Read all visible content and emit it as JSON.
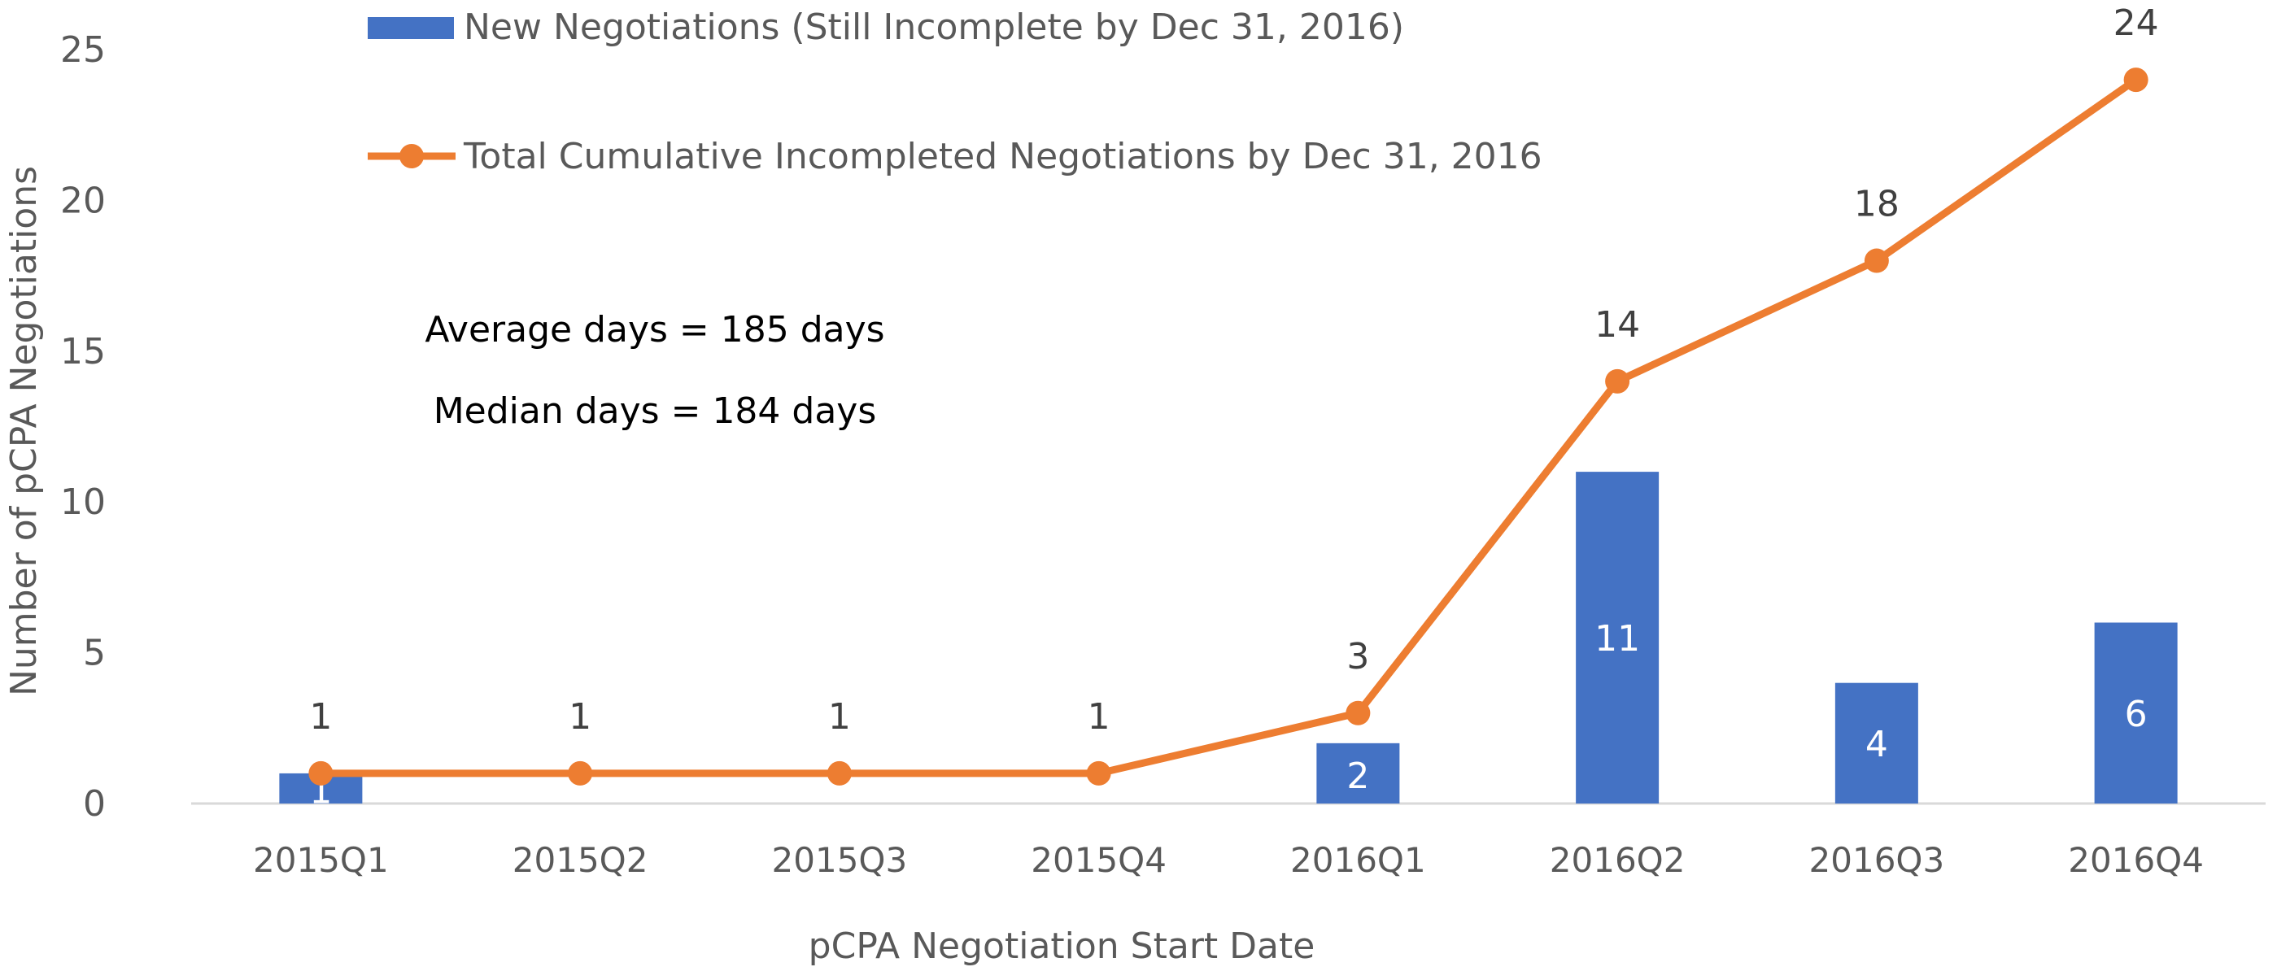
{
  "chart_data": {
    "type": "bar",
    "title": "",
    "xlabel": "pCPA Negotiation Start Date",
    "ylabel": "Number of pCPA Negotiations",
    "ylim": [
      0,
      25
    ],
    "yticks": [
      "0",
      "5",
      "10",
      "15",
      "20",
      "25"
    ],
    "grid": false,
    "legend_position": "top-left",
    "categories": [
      "2015Q1",
      "2015Q2",
      "2015Q3",
      "2015Q4",
      "2016Q1",
      "2016Q2",
      "2016Q3",
      "2016Q4"
    ],
    "series": [
      {
        "name": "New Negotiations (Still Incomplete by Dec 31, 2016)",
        "type": "bar",
        "color": "#4472C4",
        "values": [
          1,
          0,
          0,
          0,
          2,
          11,
          4,
          6
        ],
        "labels": [
          "1",
          "",
          "",
          "",
          "2",
          "11",
          "4",
          "6"
        ]
      },
      {
        "name": "Total Cumulative Incompleted Negotiations by Dec 31, 2016",
        "type": "line",
        "color": "#ED7D31",
        "values": [
          1,
          1,
          1,
          1,
          3,
          14,
          18,
          24
        ],
        "labels": [
          "1",
          "1",
          "1",
          "1",
          "3",
          "14",
          "18",
          "24"
        ]
      }
    ],
    "annotations": [
      "Average days = 185 days",
      "Median days = 184 days"
    ]
  }
}
